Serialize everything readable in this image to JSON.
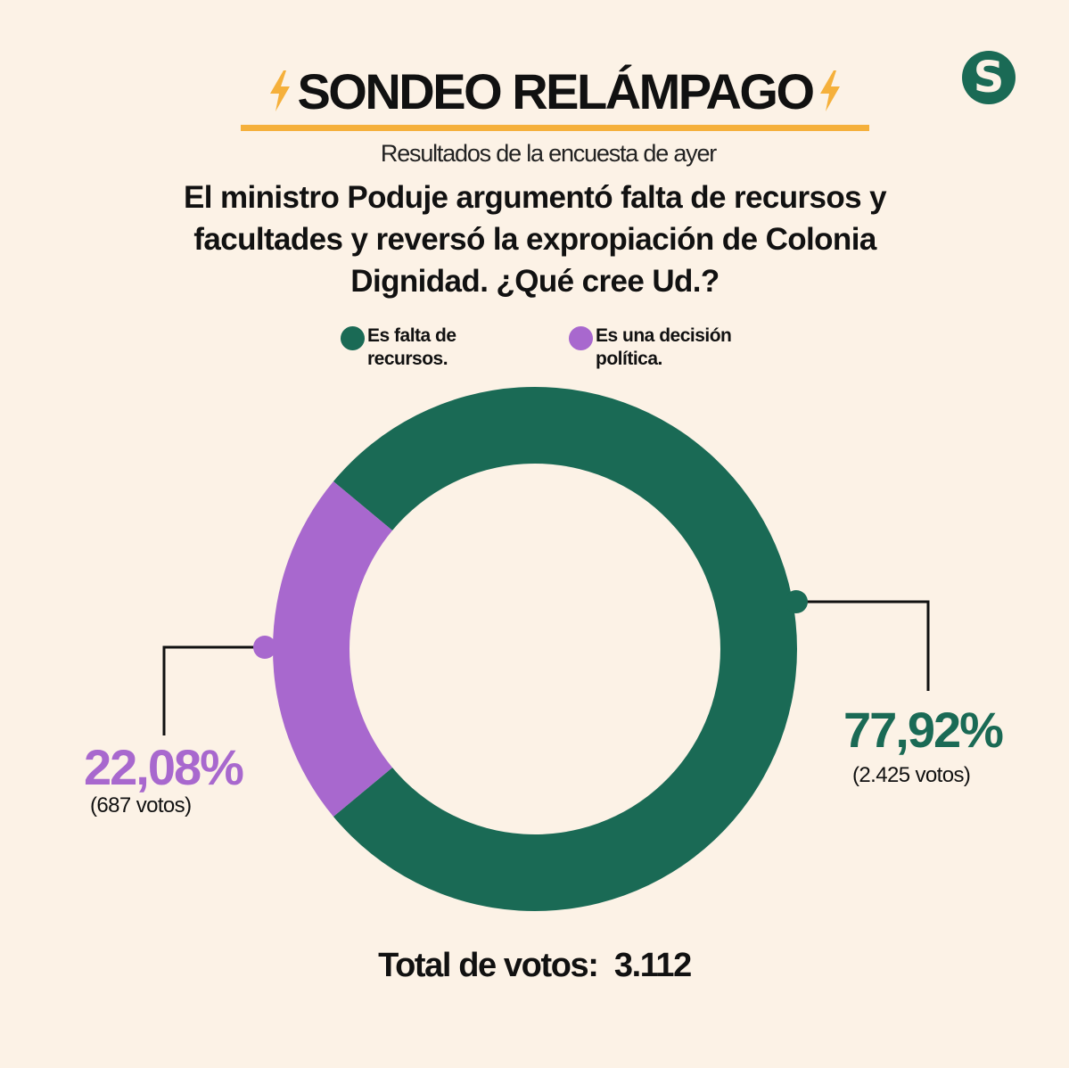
{
  "brand": {
    "logo_letter": "S",
    "color": "#1a6a55"
  },
  "header": {
    "title": "SONDEO RELÁMPAGO",
    "subtitle": "Resultados de la encuesta de ayer",
    "question": "El ministro Poduje argumentó falta de recursos y facultades y reversó la expropiación de Colonia Dignidad. ¿Qué cree Ud.?",
    "accent_color": "#f5b03b"
  },
  "chart_data": {
    "type": "pie",
    "style": "donut",
    "legend_placement": "top",
    "series": [
      {
        "name": "Es falta de recursos.",
        "percent": 77.92,
        "percent_label": "77,92%",
        "votes_label": "(2.425 votos)",
        "color": "#1a6a55"
      },
      {
        "name": "Es una decisión política.",
        "percent": 22.08,
        "percent_label": "22,08%",
        "votes_label": "(687 votos)",
        "color": "#a868ce"
      }
    ]
  },
  "footer": {
    "total_label": "Total de votos:",
    "total_value": "3.112"
  }
}
